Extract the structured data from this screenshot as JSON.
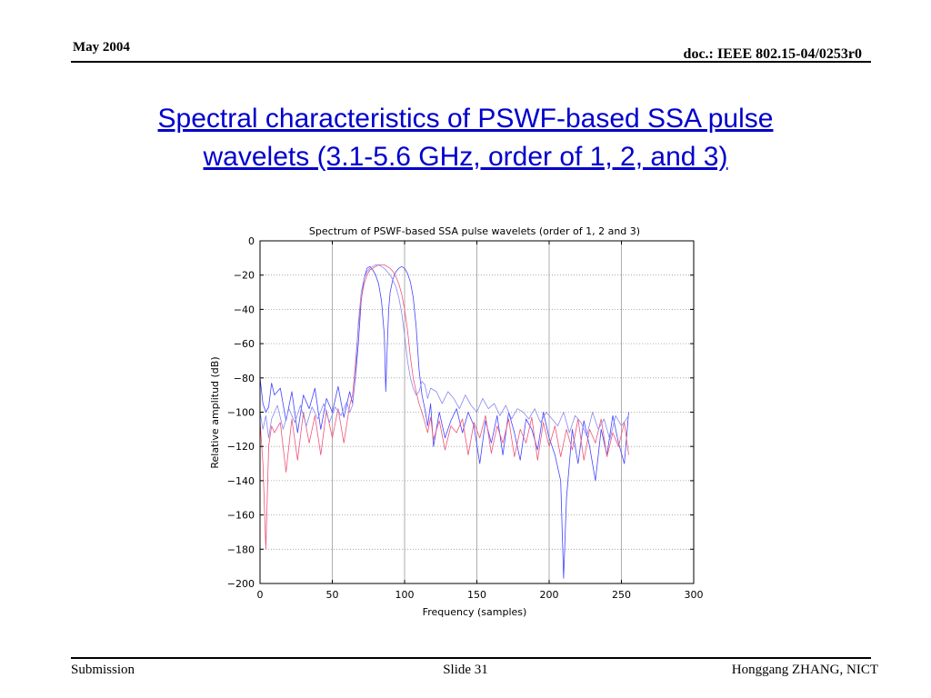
{
  "header": {
    "date": "May 2004",
    "doc": "doc.: IEEE 802.15-04/0253r0"
  },
  "slide_title": [
    "Spectral characteristics of  PSWF-based SSA pulse",
    "wavelets (3.1-5.6 GHz, order of 1, 2, and 3)"
  ],
  "footer": {
    "left": "Submission",
    "center": "Slide 31",
    "right": "Honggang ZHANG, NICT"
  },
  "colors": {
    "title": "#0000cc",
    "series_blue": "#4444ff",
    "series_pink": "#ee5577",
    "series_pink2": "#ff3355"
  },
  "chart_data": {
    "type": "line",
    "title": "Spectrum of PSWF-based SSA pulse wavelets (order of 1, 2 and 3)",
    "xlabel": "Frequency (samples)",
    "ylabel": "Relative amplitud (dB)",
    "xlim": [
      0,
      300
    ],
    "ylim": [
      -200,
      0
    ],
    "xticks": [
      0,
      50,
      100,
      150,
      200,
      250,
      300
    ],
    "yticks": [
      0,
      -20,
      -40,
      -60,
      -80,
      -100,
      -120,
      -140,
      -160,
      -180,
      -200
    ],
    "grid": true,
    "series": [
      {
        "color": "#4444ff",
        "x": [
          0,
          2,
          4,
          6,
          8,
          10,
          14,
          18,
          22,
          26,
          30,
          34,
          38,
          42,
          46,
          50,
          54,
          58,
          62,
          64,
          66,
          68,
          70,
          72,
          74,
          76,
          78,
          80,
          82,
          84,
          86,
          87,
          88,
          89,
          90,
          92,
          94,
          96,
          98,
          100,
          102,
          104,
          106,
          108,
          110,
          112,
          114,
          116,
          118,
          120,
          124,
          128,
          132,
          136,
          140,
          144,
          148,
          152,
          156,
          160,
          164,
          168,
          172,
          176,
          180,
          184,
          188,
          192,
          196,
          200,
          204,
          208,
          210,
          212,
          216,
          220,
          224,
          228,
          232,
          236,
          240,
          244,
          248,
          252,
          255
        ],
        "y": [
          -80,
          -95,
          -100,
          -97,
          -83,
          -90,
          -86,
          -105,
          -88,
          -112,
          -90,
          -98,
          -86,
          -110,
          -92,
          -100,
          -85,
          -103,
          -88,
          -95,
          -80,
          -60,
          -35,
          -22,
          -16,
          -15,
          -17,
          -20,
          -25,
          -35,
          -55,
          -88,
          -62,
          -40,
          -30,
          -22,
          -18,
          -16,
          -15,
          -16,
          -19,
          -24,
          -33,
          -50,
          -75,
          -90,
          -98,
          -108,
          -95,
          -120,
          -100,
          -115,
          -105,
          -98,
          -112,
          -100,
          -108,
          -130,
          -105,
          -118,
          -102,
          -125,
          -100,
          -112,
          -128,
          -104,
          -110,
          -122,
          -100,
          -115,
          -125,
          -140,
          -197,
          -150,
          -110,
          -130,
          -105,
          -120,
          -140,
          -110,
          -125,
          -102,
          -118,
          -130,
          -100
        ]
      },
      {
        "color": "#ee5577",
        "x": [
          0,
          2,
          4,
          6,
          8,
          10,
          14,
          18,
          22,
          26,
          30,
          34,
          38,
          42,
          46,
          50,
          54,
          58,
          62,
          64,
          66,
          68,
          70,
          72,
          74,
          76,
          78,
          80,
          82,
          84,
          86,
          88,
          90,
          92,
          94,
          96,
          98,
          100,
          102,
          104,
          106,
          108,
          110,
          112,
          114,
          116,
          118,
          120,
          124,
          128,
          132,
          136,
          140,
          144,
          148,
          152,
          156,
          160,
          164,
          168,
          172,
          176,
          180,
          184,
          188,
          192,
          196,
          200,
          204,
          208,
          212,
          216,
          220,
          224,
          228,
          232,
          236,
          240,
          244,
          248,
          252,
          255
        ],
        "y": [
          -105,
          -130,
          -180,
          -120,
          -108,
          -112,
          -106,
          -135,
          -104,
          -128,
          -100,
          -118,
          -102,
          -125,
          -99,
          -115,
          -98,
          -118,
          -96,
          -90,
          -72,
          -50,
          -34,
          -25,
          -20,
          -17,
          -16,
          -15,
          -14,
          -14,
          -14,
          -15,
          -16,
          -18,
          -21,
          -25,
          -31,
          -40,
          -52,
          -68,
          -80,
          -88,
          -95,
          -100,
          -106,
          -112,
          -103,
          -116,
          -105,
          -122,
          -108,
          -112,
          -104,
          -125,
          -106,
          -115,
          -102,
          -124,
          -108,
          -118,
          -104,
          -126,
          -110,
          -118,
          -103,
          -128,
          -106,
          -120,
          -108,
          -126,
          -110,
          -122,
          -104,
          -128,
          -110,
          -118,
          -104,
          -126,
          -112,
          -120,
          -106,
          -125
        ]
      },
      {
        "color": "#8888ee",
        "x": [
          0,
          2,
          4,
          6,
          8,
          12,
          16,
          20,
          24,
          28,
          32,
          36,
          40,
          44,
          48,
          52,
          56,
          60,
          62,
          64,
          66,
          68,
          70,
          72,
          74,
          76,
          78,
          80,
          82,
          84,
          86,
          88,
          90,
          92,
          94,
          96,
          98,
          100,
          102,
          104,
          106,
          108,
          110,
          112,
          114,
          116,
          118,
          122,
          126,
          130,
          134,
          138,
          142,
          146,
          150,
          154,
          158,
          162,
          166,
          170,
          174,
          178,
          182,
          186,
          190,
          194,
          198,
          202,
          206,
          210,
          214,
          218,
          222,
          226,
          230,
          234,
          238,
          242,
          246,
          250,
          255
        ],
        "y": [
          -100,
          -110,
          -102,
          -115,
          -104,
          -96,
          -110,
          -98,
          -106,
          -96,
          -108,
          -97,
          -104,
          -95,
          -106,
          -97,
          -102,
          -94,
          -100,
          -96,
          -78,
          -48,
          -30,
          -22,
          -18,
          -16,
          -15,
          -14,
          -14,
          -15,
          -16,
          -18,
          -20,
          -23,
          -27,
          -33,
          -42,
          -55,
          -70,
          -80,
          -86,
          -90,
          -88,
          -82,
          -84,
          -92,
          -86,
          -88,
          -95,
          -88,
          -92,
          -98,
          -90,
          -96,
          -100,
          -92,
          -98,
          -95,
          -102,
          -96,
          -104,
          -98,
          -100,
          -104,
          -98,
          -106,
          -100,
          -104,
          -108,
          -100,
          -112,
          -102,
          -106,
          -114,
          -100,
          -110,
          -104,
          -116,
          -102,
          -108,
          -102
        ]
      }
    ]
  }
}
